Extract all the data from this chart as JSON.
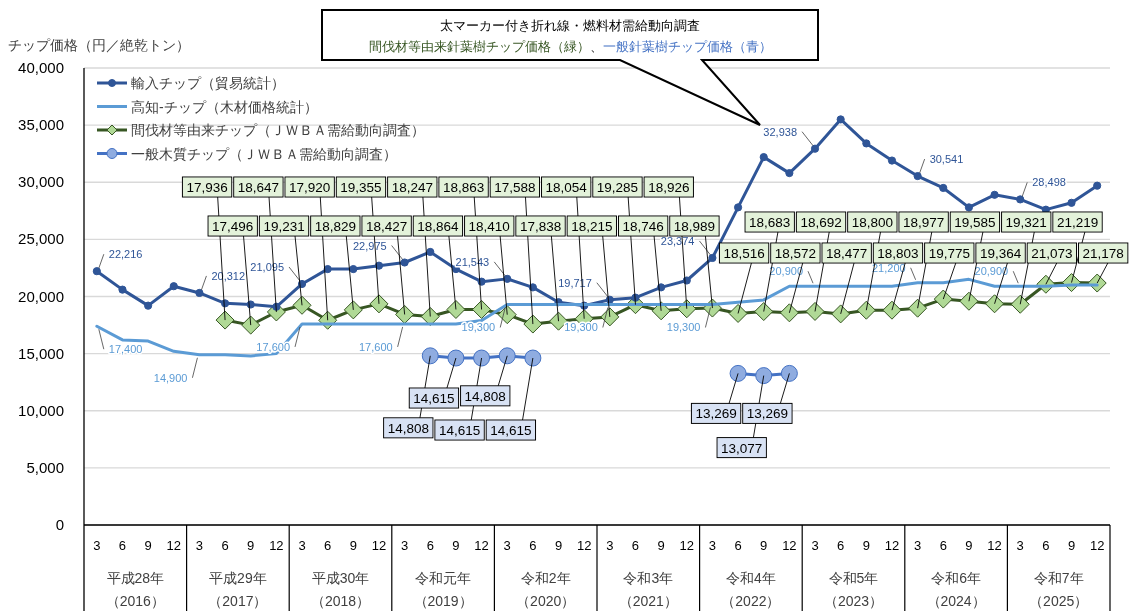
{
  "chart_data": {
    "type": "line",
    "ylabel": "チップ価格（円／絶乾トン）",
    "categories": [
      "3",
      "6",
      "9",
      "12",
      "3",
      "6",
      "9",
      "12",
      "3",
      "6",
      "9",
      "12",
      "3",
      "6",
      "9",
      "12",
      "3",
      "6",
      "9",
      "12",
      "3",
      "6",
      "9",
      "12",
      "3",
      "6",
      "9",
      "12",
      "3",
      "6",
      "9",
      "12",
      "3",
      "6",
      "9",
      "12",
      "3",
      "6",
      "9",
      "12"
    ],
    "ylim": [
      0,
      40000
    ],
    "yticks": [
      0,
      {
        "value": 5000,
        "label": "5,000"
      },
      {
        "value": 10000,
        "label": "10,000"
      },
      {
        "value": 15000,
        "label": "15,000"
      },
      {
        "value": 20000,
        "label": "20,000"
      },
      {
        "value": 25000,
        "label": "25,000"
      },
      {
        "value": 30000,
        "label": "30,000"
      },
      {
        "value": 35000,
        "label": "35,000"
      },
      {
        "value": 40000,
        "label": "40,000"
      }
    ],
    "grid": "y",
    "legend": "top left",
    "annotations": [
      "平成28年",
      "平成29年",
      "平成30年",
      "令和元年",
      "令和2年",
      "令和3年",
      "令和4年",
      "令和5年",
      "令和6年",
      "令和7年",
      "（2016）",
      "（2017）",
      "（2018）",
      "（2019）",
      "（2020）",
      "（2021）",
      "（2022）",
      "（2023）",
      "（2024）",
      "（2025）",
      "太マーカー付き折れ線・燃料材需給動向調査",
      "間伐材等由来針葉樹チップ価格（緑）",
      "、",
      "一般針葉樹チップ価格（青）"
    ],
    "series": [
      {
        "name": "輸入チップ（貿易統計）",
        "color": "#2f5597",
        "marker": "circle",
        "values": [
          22216,
          20600,
          19200,
          20900,
          20312,
          19400,
          19300,
          19100,
          21095,
          22400,
          22400,
          22700,
          22975,
          23900,
          22400,
          21300,
          21543,
          20800,
          19500,
          19200,
          19717,
          19900,
          20800,
          21400,
          23374,
          27800,
          32200,
          30800,
          32938,
          35500,
          33400,
          31900,
          30541,
          29500,
          27800,
          28900,
          28498,
          27600,
          28200,
          29700
        ],
        "value_labels": [
          "22,216",
          null,
          null,
          null,
          "20,312",
          null,
          null,
          null,
          "21,095",
          null,
          null,
          null,
          "22,975",
          null,
          null,
          null,
          "21,543",
          null,
          null,
          null,
          "19,717",
          null,
          null,
          null,
          "23,374",
          null,
          null,
          null,
          "32,938",
          null,
          null,
          null,
          "30,541",
          null,
          null,
          null,
          "28,498",
          null,
          null,
          null
        ]
      },
      {
        "name": "高知-チップ（木材価格統計）",
        "color": "#5b9bd5",
        "marker": "none",
        "values": [
          17400,
          16200,
          16100,
          15200,
          14900,
          14900,
          14800,
          15000,
          17600,
          17600,
          17600,
          17600,
          17600,
          17600,
          17600,
          17900,
          19300,
          19300,
          19300,
          19300,
          19300,
          19300,
          19300,
          19300,
          19300,
          19500,
          19700,
          20900,
          20900,
          20900,
          20900,
          20900,
          21200,
          21200,
          21500,
          20900,
          20900,
          20900,
          21000,
          21000
        ],
        "value_labels": [
          "17,400",
          null,
          null,
          null,
          "14,900",
          null,
          null,
          null,
          "17,600",
          null,
          null,
          null,
          "17,600",
          null,
          null,
          null,
          "19,300",
          null,
          null,
          null,
          "19,300",
          null,
          null,
          null,
          "19,300",
          null,
          null,
          null,
          "20,900",
          null,
          null,
          null,
          "21,200",
          null,
          null,
          null,
          "20,900",
          null,
          null,
          null
        ]
      },
      {
        "name": "間伐材等由来チップ（ＪＷＢＡ需給動向調査）",
        "color": "#375623",
        "marker": "diamond",
        "values": [
          null,
          null,
          null,
          null,
          null,
          17936,
          17496,
          18647,
          19231,
          17920,
          18829,
          19355,
          18427,
          18247,
          18864,
          18863,
          18410,
          17588,
          17838,
          18054,
          18215,
          19285,
          18746,
          18926,
          18989,
          18516,
          18683,
          18572,
          18692,
          18477,
          18800,
          18803,
          18977,
          19775,
          19585,
          19364,
          19321,
          21073,
          21219,
          21178
        ],
        "value_labels": [
          null,
          null,
          null,
          null,
          null,
          "17,936",
          "17,496",
          "18,647",
          "19,231",
          "17,920",
          "18,829",
          "19,355",
          "18,427",
          "18,247",
          "18,864",
          "18,863",
          "18,410",
          "17,588",
          "17,838",
          "18,054",
          "18,215",
          "19,285",
          "18,746",
          "18,926",
          "18,989",
          "18,516",
          "18,683",
          "18,572",
          "18,692",
          "18,477",
          "18,800",
          "18,803",
          "18,977",
          "19,775",
          "19,585",
          "19,364",
          "19,321",
          "21,073",
          "21,219",
          "21,178"
        ]
      },
      {
        "name": "一般木質チップ（ＪＷＢＡ需給動向調査）",
        "color": "#4472c4",
        "marker": "circle",
        "values": [
          null,
          null,
          null,
          null,
          null,
          null,
          null,
          null,
          null,
          null,
          null,
          null,
          null,
          14808,
          14615,
          14615,
          14808,
          14615,
          null,
          null,
          null,
          null,
          null,
          null,
          null,
          13269,
          13077,
          13269,
          null,
          null,
          null,
          null,
          null,
          null,
          null,
          null,
          null,
          null,
          null,
          null
        ],
        "value_labels": [
          null,
          null,
          null,
          null,
          null,
          null,
          null,
          null,
          null,
          null,
          null,
          null,
          null,
          "14,808",
          "14,615",
          "14,615",
          "14,808",
          "14,615",
          null,
          null,
          null,
          null,
          null,
          null,
          null,
          "13,269",
          "13,077",
          "13,269",
          null,
          null,
          null,
          null,
          null,
          null,
          null,
          null,
          null,
          null,
          null,
          null
        ]
      }
    ]
  }
}
